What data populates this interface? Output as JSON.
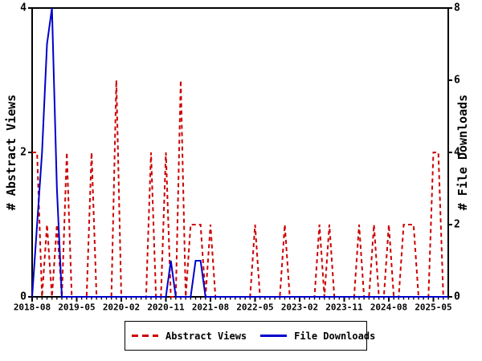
{
  "chart_data": {
    "type": "line",
    "title": "",
    "grid": false,
    "x_axis": {
      "start_month": "2018-08",
      "end_month": "2025-08",
      "step": "month",
      "tick_label_every_n_months": 9,
      "tick_labels": [
        "2018-08",
        "2019-05",
        "2020-02",
        "2020-11",
        "2021-08",
        "2022-05",
        "2023-02",
        "2023-11",
        "2024-08",
        "2025-05"
      ]
    },
    "left_axis": {
      "title": "# Abstract Views",
      "range": [
        0,
        4
      ],
      "tick_labels": [
        "0",
        "2",
        "4"
      ]
    },
    "right_axis": {
      "title": "# File Downloads",
      "range": [
        0,
        8
      ],
      "tick_labels": [
        "0",
        "2",
        "4",
        "6",
        "8"
      ]
    },
    "series": [
      {
        "name": "Abstract Views",
        "axis": "left",
        "color": "#cc0000",
        "line_style": "dashed",
        "values": [
          2,
          2,
          0,
          1,
          0,
          1,
          0,
          2,
          0,
          0,
          0,
          0,
          2,
          0,
          0,
          0,
          0,
          3,
          0,
          0,
          0,
          0,
          0,
          0,
          2,
          0,
          0,
          2,
          0,
          0,
          3,
          0,
          1,
          1,
          1,
          0,
          1,
          0,
          0,
          0,
          0,
          0,
          0,
          0,
          0,
          1,
          0,
          0,
          0,
          0,
          0,
          1,
          0,
          0,
          0,
          0,
          0,
          0,
          1,
          0,
          1,
          0,
          0,
          0,
          0,
          0,
          1,
          0,
          0,
          1,
          0,
          0,
          1,
          0,
          0,
          1,
          1,
          1,
          0,
          0,
          0,
          2,
          2,
          0,
          0
        ]
      },
      {
        "name": "File Downloads",
        "axis": "right",
        "color": "#0000cc",
        "line_style": "solid",
        "values": [
          0,
          2,
          4,
          7,
          8,
          3,
          0,
          0,
          0,
          0,
          0,
          0,
          0,
          0,
          0,
          0,
          0,
          0,
          0,
          0,
          0,
          0,
          0,
          0,
          0,
          0,
          0,
          0,
          1,
          0,
          0,
          0,
          0,
          1,
          1,
          0,
          0,
          0,
          0,
          0,
          0,
          0,
          0,
          0,
          0,
          0,
          0,
          0,
          0,
          0,
          0,
          0,
          0,
          0,
          0,
          0,
          0,
          0,
          0,
          0,
          0,
          0,
          0,
          0,
          0,
          0,
          0,
          0,
          0,
          0,
          0,
          0,
          0,
          0,
          0,
          0,
          0,
          0,
          0,
          0,
          0,
          0,
          0,
          0,
          0
        ]
      }
    ],
    "legend_position": "bottom-center"
  },
  "axes": {
    "left_title": "# Abstract Views",
    "right_title": "# File Downloads"
  },
  "legend": {
    "abstract_views": "Abstract Views",
    "file_downloads": "File Downloads"
  }
}
